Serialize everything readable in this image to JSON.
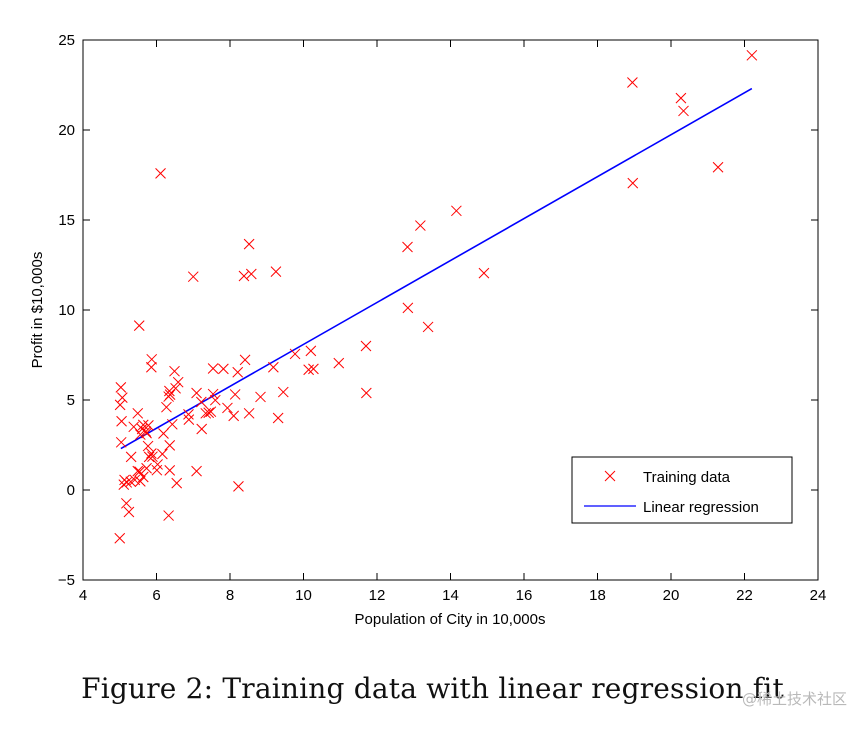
{
  "chart_data": {
    "type": "scatter",
    "title": "",
    "xlabel": "Population of City in 10,000s",
    "ylabel": "Profit in $10,000s",
    "xlim": [
      4,
      24
    ],
    "ylim": [
      -5,
      25
    ],
    "xticks": [
      4,
      6,
      8,
      10,
      12,
      14,
      16,
      18,
      20,
      22,
      24
    ],
    "yticks": [
      -5,
      0,
      5,
      10,
      15,
      20,
      25
    ],
    "ytick_labels": [
      "−5",
      "0",
      "5",
      "10",
      "15",
      "20",
      "25"
    ],
    "legend_position": "bottom-right",
    "series": [
      {
        "name": "Training data",
        "type": "scatter",
        "marker": "x",
        "color": "#ff0000",
        "points": [
          [
            6.11,
            17.59
          ],
          [
            5.53,
            9.13
          ],
          [
            8.52,
            13.66
          ],
          [
            7.0,
            11.85
          ],
          [
            5.86,
            6.82
          ],
          [
            8.38,
            11.89
          ],
          [
            7.48,
            4.35
          ],
          [
            8.58,
            12.0
          ],
          [
            6.49,
            6.6
          ],
          [
            5.05,
            3.82
          ],
          [
            5.71,
            3.25
          ],
          [
            14.16,
            15.51
          ],
          [
            5.73,
            3.16
          ],
          [
            8.41,
            7.23
          ],
          [
            5.64,
            0.72
          ],
          [
            5.38,
            3.51
          ],
          [
            6.37,
            5.3
          ],
          [
            5.13,
            0.56
          ],
          [
            6.43,
            3.65
          ],
          [
            7.09,
            5.39
          ],
          [
            6.19,
            3.14
          ],
          [
            20.27,
            21.77
          ],
          [
            5.49,
            4.26
          ],
          [
            6.33,
            5.19
          ],
          [
            5.56,
            3.08
          ],
          [
            18.95,
            22.64
          ],
          [
            12.83,
            13.5
          ],
          [
            10.96,
            7.05
          ],
          [
            13.18,
            14.69
          ],
          [
            22.2,
            24.15
          ],
          [
            5.25,
            -1.22
          ],
          [
            6.59,
            5.99
          ],
          [
            9.25,
            12.13
          ],
          [
            5.89,
            1.85
          ],
          [
            8.21,
            6.54
          ],
          [
            7.93,
            4.56
          ],
          [
            8.1,
            4.12
          ],
          [
            5.61,
            3.39
          ],
          [
            12.84,
            10.12
          ],
          [
            6.35,
            5.5
          ],
          [
            5.41,
            0.56
          ],
          [
            6.88,
            3.91
          ],
          [
            11.71,
            5.39
          ],
          [
            5.77,
            2.44
          ],
          [
            7.82,
            6.73
          ],
          [
            7.09,
            1.05
          ],
          [
            5.07,
            5.13
          ],
          [
            5.8,
            1.84
          ],
          [
            11.7,
            8.0
          ],
          [
            5.54,
            1.02
          ],
          [
            7.54,
            6.75
          ],
          [
            5.31,
            1.84
          ],
          [
            7.42,
            4.29
          ],
          [
            7.6,
            4.99
          ],
          [
            6.03,
            1.42
          ],
          [
            6.33,
            -1.42
          ],
          [
            6.36,
            2.48
          ],
          [
            6.27,
            4.6
          ],
          [
            5.64,
            3.62
          ],
          [
            9.31,
            4.0
          ],
          [
            9.45,
            5.44
          ],
          [
            8.83,
            5.17
          ],
          [
            5.18,
            -0.74
          ],
          [
            21.28,
            17.93
          ],
          [
            14.91,
            12.05
          ],
          [
            18.96,
            17.05
          ],
          [
            7.22,
            4.89
          ],
          [
            5.3,
            0.46
          ],
          [
            20.34,
            21.06
          ],
          [
            10.14,
            6.68
          ],
          [
            7.34,
            4.26
          ],
          [
            6.01,
            1.1
          ],
          [
            7.23,
            3.39
          ],
          [
            5.03,
            5.7
          ],
          [
            6.55,
            0.38
          ],
          [
            7.54,
            5.33
          ],
          [
            5.04,
            2.65
          ],
          [
            10.27,
            6.73
          ],
          [
            5.11,
            0.3
          ],
          [
            5.73,
            1.21
          ],
          [
            5.19,
            0.42
          ],
          [
            6.36,
            1.09
          ],
          [
            9.77,
            7.56
          ],
          [
            6.52,
            5.65
          ],
          [
            8.52,
            4.26
          ],
          [
            8.14,
            5.31
          ],
          [
            5.78,
            3.59
          ],
          [
            5.87,
            7.26
          ],
          [
            8.23,
            0.2
          ],
          [
            13.39,
            9.06
          ],
          [
            5.0,
            -2.68
          ],
          [
            5.49,
            1.05
          ],
          [
            6.16,
            2.0
          ],
          [
            5.86,
            2.03
          ],
          [
            5.01,
            4.73
          ],
          [
            5.56,
            0.48
          ],
          [
            6.87,
            4.2
          ],
          [
            10.2,
            7.73
          ],
          [
            9.18,
            6.82
          ]
        ]
      },
      {
        "name": "Linear regression",
        "type": "line",
        "color": "#0000ff",
        "points": [
          [
            5.03,
            2.3
          ],
          [
            22.2,
            22.3
          ]
        ]
      }
    ]
  },
  "caption": "Figure 2: Training data with linear regression fit",
  "watermark": "@稀土技术社区"
}
